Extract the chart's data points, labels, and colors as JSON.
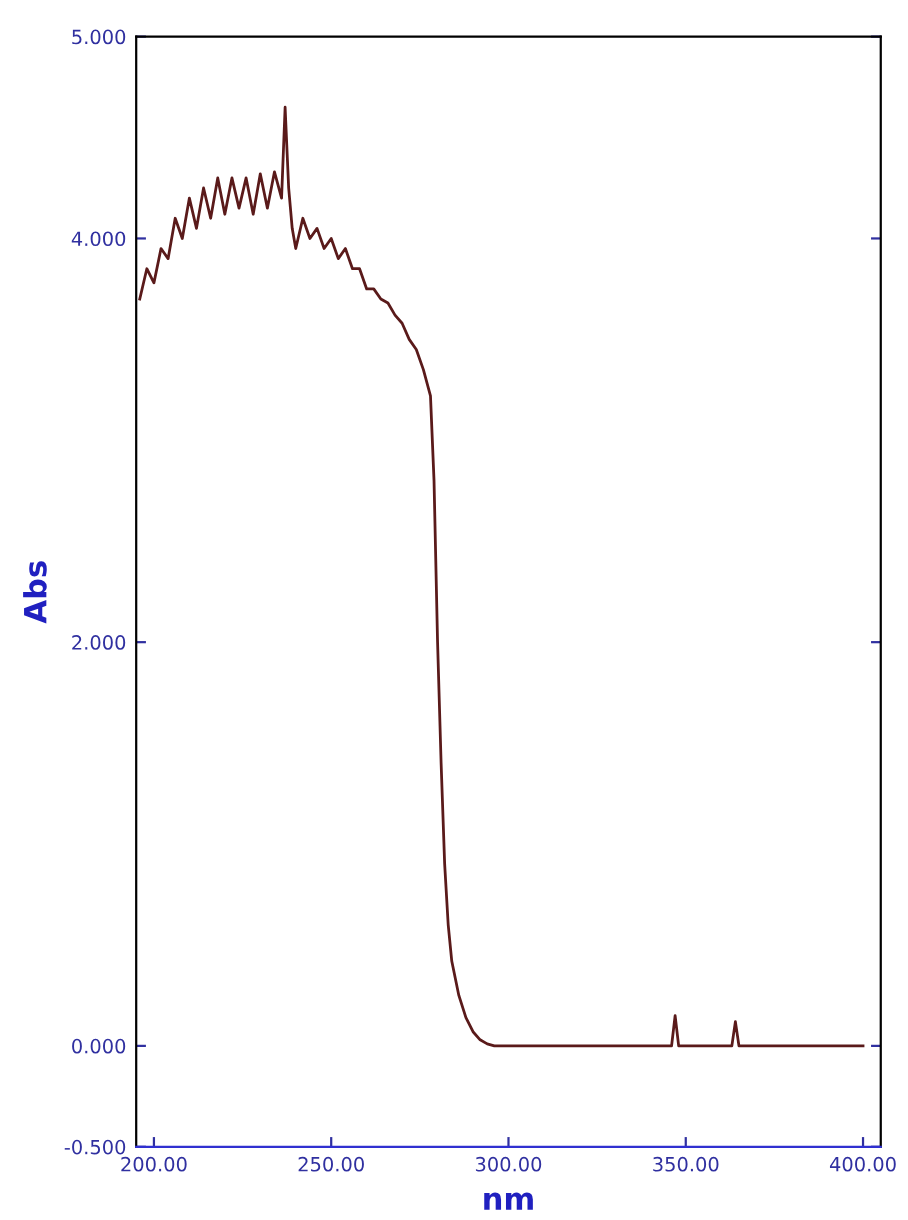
{
  "chart_data": {
    "type": "line",
    "xlabel": "nm",
    "ylabel": "Abs",
    "xlim": [
      195,
      405
    ],
    "xticks": [
      {
        "value": 200,
        "label": "200.00"
      },
      {
        "value": 250,
        "label": "250.00"
      },
      {
        "value": 300,
        "label": "300.00"
      },
      {
        "value": 350,
        "label": "350.00"
      },
      {
        "value": 400,
        "label": "400.00"
      }
    ],
    "ylim": [
      -0.5,
      5.0
    ],
    "yticks": [
      {
        "value": -0.5,
        "label": "-0.500"
      },
      {
        "value": 0,
        "label": "0.000"
      },
      {
        "value": 2,
        "label": "2.000"
      },
      {
        "value": 4,
        "label": "4.000"
      },
      {
        "value": 5,
        "label": "5.000"
      }
    ],
    "grid": false,
    "line_style": "solid",
    "series": [
      {
        "color": "#5a1a1a",
        "x": [
          196,
          198,
          200,
          202,
          204,
          206,
          208,
          210,
          212,
          214,
          216,
          218,
          220,
          222,
          224,
          226,
          228,
          230,
          232,
          234,
          236,
          237,
          238,
          239,
          240,
          242,
          244,
          246,
          248,
          250,
          252,
          254,
          256,
          258,
          260,
          262,
          264,
          266,
          268,
          270,
          272,
          274,
          276,
          278,
          279,
          280,
          281,
          282,
          283,
          284,
          286,
          288,
          290,
          292,
          294,
          296,
          298,
          300,
          310,
          320,
          330,
          340,
          346,
          347,
          348,
          355,
          363,
          364,
          365,
          380,
          400
        ],
        "values": [
          3.7,
          3.85,
          3.78,
          3.95,
          3.9,
          4.1,
          4.0,
          4.2,
          4.05,
          4.25,
          4.1,
          4.3,
          4.12,
          4.3,
          4.15,
          4.3,
          4.12,
          4.32,
          4.15,
          4.33,
          4.2,
          4.65,
          4.25,
          4.05,
          3.95,
          4.1,
          4.0,
          4.05,
          3.95,
          4.0,
          3.9,
          3.95,
          3.85,
          3.85,
          3.75,
          3.75,
          3.7,
          3.68,
          3.62,
          3.58,
          3.5,
          3.45,
          3.35,
          3.22,
          2.8,
          2.0,
          1.4,
          0.9,
          0.6,
          0.42,
          0.25,
          0.14,
          0.07,
          0.03,
          0.01,
          0.0,
          0.0,
          0.0,
          0.0,
          0.0,
          0.0,
          0.0,
          0.0,
          0.15,
          0.0,
          0.0,
          0.0,
          0.12,
          0.0,
          0.0,
          0.0
        ]
      }
    ]
  }
}
